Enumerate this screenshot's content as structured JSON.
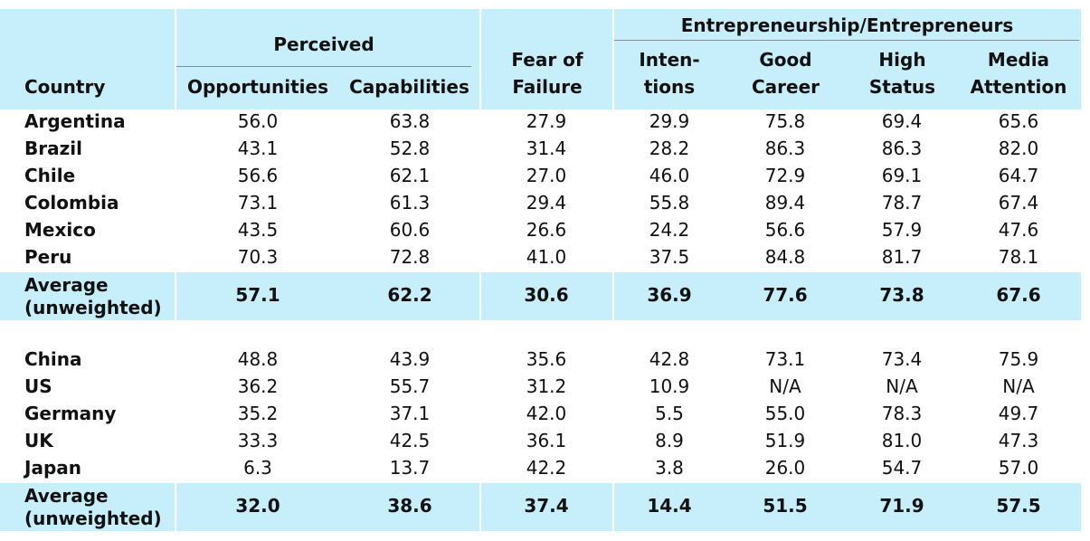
{
  "header": {
    "country": "Country",
    "perceived": "Perceived",
    "opportunities": "Opportunities",
    "capabilities": "Capabilities",
    "fear_line1": "Fear of",
    "fear_line2": "Failure",
    "entrepreneurship": "Entrepreneurship/Entrepreneurs",
    "intentions_line1": "Inten-",
    "intentions_line2": "tions",
    "good_line1": "Good",
    "good_line2": "Career",
    "high_line1": "High",
    "high_line2": "Status",
    "media_line1": "Media",
    "media_line2": "Attention"
  },
  "groups": [
    {
      "rows": [
        {
          "country": "Argentina",
          "values": [
            "56.0",
            "63.8",
            "27.9",
            "29.9",
            "75.8",
            "69.4",
            "65.6"
          ]
        },
        {
          "country": "Brazil",
          "values": [
            "43.1",
            "52.8",
            "31.4",
            "28.2",
            "86.3",
            "86.3",
            "82.0"
          ]
        },
        {
          "country": "Chile",
          "values": [
            "56.6",
            "62.1",
            "27.0",
            "46.0",
            "72.9",
            "69.1",
            "64.7"
          ]
        },
        {
          "country": "Colombia",
          "values": [
            "73.1",
            "61.3",
            "29.4",
            "55.8",
            "89.4",
            "78.7",
            "67.4"
          ]
        },
        {
          "country": "Mexico",
          "values": [
            "43.5",
            "60.6",
            "26.6",
            "24.2",
            "56.6",
            "57.9",
            "47.6"
          ]
        },
        {
          "country": "Peru",
          "values": [
            "70.3",
            "72.8",
            "41.0",
            "37.5",
            "84.8",
            "81.7",
            "78.1"
          ]
        }
      ],
      "average": {
        "label_line1": "Average",
        "label_line2": "(unweighted)",
        "values": [
          "57.1",
          "62.2",
          "30.6",
          "36.9",
          "77.6",
          "73.8",
          "67.6"
        ]
      }
    },
    {
      "rows": [
        {
          "country": "China",
          "values": [
            "48.8",
            "43.9",
            "35.6",
            "42.8",
            "73.1",
            "73.4",
            "75.9"
          ]
        },
        {
          "country": "US",
          "values": [
            "36.2",
            "55.7",
            "31.2",
            "10.9",
            "N/A",
            "N/A",
            "N/A"
          ]
        },
        {
          "country": "Germany",
          "values": [
            "35.2",
            "37.1",
            "42.0",
            "5.5",
            "55.0",
            "78.3",
            "49.7"
          ]
        },
        {
          "country": "UK",
          "values": [
            "33.3",
            "42.5",
            "36.1",
            "8.9",
            "51.9",
            "81.0",
            "47.3"
          ]
        },
        {
          "country": "Japan",
          "values": [
            "6.3",
            "13.7",
            "42.2",
            "3.8",
            "26.0",
            "54.7",
            "57.0"
          ]
        }
      ],
      "average": {
        "label_line1": "Average",
        "label_line2": "(unweighted)",
        "values": [
          "32.0",
          "38.6",
          "37.4",
          "14.4",
          "51.5",
          "71.9",
          "57.5"
        ]
      }
    }
  ],
  "colors": {
    "header_bg": "#c6eefb",
    "average_bg": "#c6eefb",
    "text": "#111111"
  }
}
